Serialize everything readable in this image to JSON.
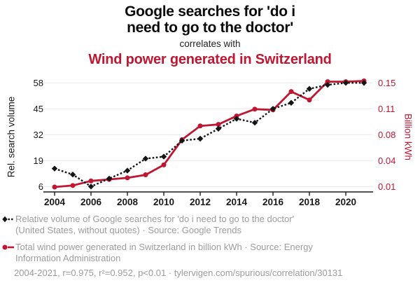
{
  "header": {
    "title_lines": [
      "Google searches for 'do i",
      "need to go to the doctor'"
    ],
    "subtitle": "correlates with",
    "secondary_title": "Wind power generated in Switzerland"
  },
  "colors": {
    "accent_red": "#bf1632",
    "series_black": "#151515",
    "muted_text": "#9c9c9c",
    "gridline": "#e8e8e8",
    "axis": "#1a1a1a"
  },
  "chart_data": {
    "type": "line",
    "x": [
      2004,
      2005,
      2006,
      2007,
      2008,
      2009,
      2010,
      2011,
      2012,
      2013,
      2014,
      2015,
      2016,
      2017,
      2018,
      2019,
      2020,
      2021
    ],
    "x_ticks": [
      2004,
      2006,
      2008,
      2010,
      2012,
      2014,
      2016,
      2018,
      2020
    ],
    "left_axis": {
      "label": "Rel. search volume",
      "ticks": [
        6,
        19,
        32,
        45,
        58
      ],
      "range": [
        6,
        58
      ]
    },
    "right_axis": {
      "label": "Billion kWh",
      "tick_labels": [
        "0.01",
        "0.04",
        "0.08",
        "0.11",
        "0.15"
      ],
      "range": [
        0.008,
        0.147
      ]
    },
    "grid": "horizontal",
    "legend_position": "below",
    "series": [
      {
        "id": "google-searches",
        "name": "Relative volume of Google searches for 'do i need to go to the doctor'",
        "axis": "left",
        "style": "dashed",
        "marker": "diamond",
        "color": "#151515",
        "values": [
          15,
          12,
          6,
          10,
          14,
          20,
          21,
          29,
          30,
          35,
          40,
          38,
          45,
          48,
          55,
          57,
          58,
          58
        ]
      },
      {
        "id": "wind-power",
        "name": "Total wind power generated in Switzerland in billion kWh",
        "axis": "right",
        "style": "solid",
        "marker": "circle",
        "color": "#bf1632",
        "values": [
          0.008,
          0.01,
          0.016,
          0.018,
          0.02,
          0.024,
          0.037,
          0.07,
          0.088,
          0.09,
          0.101,
          0.11,
          0.109,
          0.133,
          0.122,
          0.146,
          0.146,
          0.147
        ]
      }
    ]
  },
  "legend": {
    "items": [
      {
        "marker": "black-diamond-dashed-line",
        "lines": [
          "Relative volume of Google searches for 'do i need to go to the doctor'",
          "(United States, without quotes) · Source: Google Trends"
        ]
      },
      {
        "marker": "red-circle-solid-line",
        "lines": [
          "Total wind power generated in Switzerland in billion kWh · Source: Energy",
          "Information Administration"
        ]
      }
    ]
  },
  "footer": {
    "stats_line": "2004-2021, r=0.975, r²=0.952, p<0.01 · tylervigen.com/spurious/correlation/30131"
  }
}
